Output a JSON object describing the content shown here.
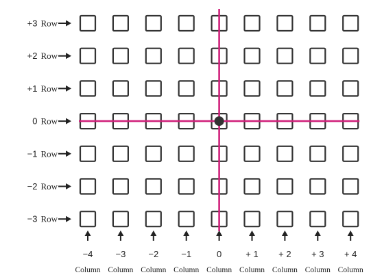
{
  "rows": [
    {
      "num": "+3",
      "word": "Row"
    },
    {
      "num": "+2",
      "word": "Row"
    },
    {
      "num": "+1",
      "word": "Row"
    },
    {
      "num": "0",
      "word": "Row"
    },
    {
      "num": "−1",
      "word": "Row"
    },
    {
      "num": "−2",
      "word": "Row"
    },
    {
      "num": "−3",
      "word": "Row"
    }
  ],
  "columns": [
    {
      "num": "−4",
      "word": "Column"
    },
    {
      "num": "−3",
      "word": "Column"
    },
    {
      "num": "−2",
      "word": "Column"
    },
    {
      "num": "−1",
      "word": "Column"
    },
    {
      "num": "0",
      "word": "Column"
    },
    {
      "num": "+ 1",
      "word": "Column"
    },
    {
      "num": "+ 2",
      "word": "Column"
    },
    {
      "num": "+ 3",
      "word": "Column"
    },
    {
      "num": "+ 4",
      "word": "Column"
    }
  ],
  "origin": {
    "row_index": 3,
    "col_index": 4
  },
  "colors": {
    "axis_line": "#d0207a",
    "origin_dot": "#333333",
    "cell_border": "#333333"
  },
  "icons": {
    "row_arrow": "right-arrow-icon",
    "col_arrow": "up-arrow-icon"
  }
}
